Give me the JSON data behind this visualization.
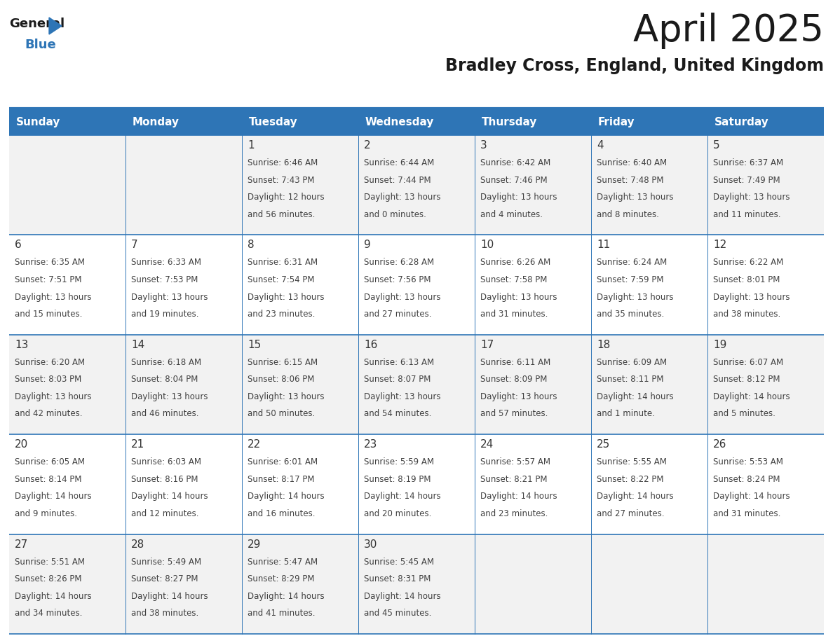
{
  "title": "April 2025",
  "subtitle": "Bradley Cross, England, United Kingdom",
  "header_color": "#2E75B6",
  "header_text_color": "#FFFFFF",
  "day_names": [
    "Sunday",
    "Monday",
    "Tuesday",
    "Wednesday",
    "Thursday",
    "Friday",
    "Saturday"
  ],
  "background_color": "#FFFFFF",
  "row_bg_odd": "#F2F2F2",
  "row_bg_even": "#FFFFFF",
  "cell_border_color": "#2E75B6",
  "text_color": "#404040",
  "date_color": "#333333",
  "logo_text_color": "#1a1a1a",
  "logo_blue_color": "#2E75B6",
  "title_color": "#1a1a1a",
  "subtitle_color": "#1a1a1a",
  "weeks": [
    [
      {
        "date": "",
        "sunrise": "",
        "sunset": "",
        "daylight_h": "",
        "daylight_m": ""
      },
      {
        "date": "",
        "sunrise": "",
        "sunset": "",
        "daylight_h": "",
        "daylight_m": ""
      },
      {
        "date": "1",
        "sunrise": "6:46 AM",
        "sunset": "7:43 PM",
        "daylight_h": "12 hours",
        "daylight_m": "56 minutes."
      },
      {
        "date": "2",
        "sunrise": "6:44 AM",
        "sunset": "7:44 PM",
        "daylight_h": "13 hours",
        "daylight_m": "0 minutes."
      },
      {
        "date": "3",
        "sunrise": "6:42 AM",
        "sunset": "7:46 PM",
        "daylight_h": "13 hours",
        "daylight_m": "4 minutes."
      },
      {
        "date": "4",
        "sunrise": "6:40 AM",
        "sunset": "7:48 PM",
        "daylight_h": "13 hours",
        "daylight_m": "8 minutes."
      },
      {
        "date": "5",
        "sunrise": "6:37 AM",
        "sunset": "7:49 PM",
        "daylight_h": "13 hours",
        "daylight_m": "11 minutes."
      }
    ],
    [
      {
        "date": "6",
        "sunrise": "6:35 AM",
        "sunset": "7:51 PM",
        "daylight_h": "13 hours",
        "daylight_m": "15 minutes."
      },
      {
        "date": "7",
        "sunrise": "6:33 AM",
        "sunset": "7:53 PM",
        "daylight_h": "13 hours",
        "daylight_m": "19 minutes."
      },
      {
        "date": "8",
        "sunrise": "6:31 AM",
        "sunset": "7:54 PM",
        "daylight_h": "13 hours",
        "daylight_m": "23 minutes."
      },
      {
        "date": "9",
        "sunrise": "6:28 AM",
        "sunset": "7:56 PM",
        "daylight_h": "13 hours",
        "daylight_m": "27 minutes."
      },
      {
        "date": "10",
        "sunrise": "6:26 AM",
        "sunset": "7:58 PM",
        "daylight_h": "13 hours",
        "daylight_m": "31 minutes."
      },
      {
        "date": "11",
        "sunrise": "6:24 AM",
        "sunset": "7:59 PM",
        "daylight_h": "13 hours",
        "daylight_m": "35 minutes."
      },
      {
        "date": "12",
        "sunrise": "6:22 AM",
        "sunset": "8:01 PM",
        "daylight_h": "13 hours",
        "daylight_m": "38 minutes."
      }
    ],
    [
      {
        "date": "13",
        "sunrise": "6:20 AM",
        "sunset": "8:03 PM",
        "daylight_h": "13 hours",
        "daylight_m": "42 minutes."
      },
      {
        "date": "14",
        "sunrise": "6:18 AM",
        "sunset": "8:04 PM",
        "daylight_h": "13 hours",
        "daylight_m": "46 minutes."
      },
      {
        "date": "15",
        "sunrise": "6:15 AM",
        "sunset": "8:06 PM",
        "daylight_h": "13 hours",
        "daylight_m": "50 minutes."
      },
      {
        "date": "16",
        "sunrise": "6:13 AM",
        "sunset": "8:07 PM",
        "daylight_h": "13 hours",
        "daylight_m": "54 minutes."
      },
      {
        "date": "17",
        "sunrise": "6:11 AM",
        "sunset": "8:09 PM",
        "daylight_h": "13 hours",
        "daylight_m": "57 minutes."
      },
      {
        "date": "18",
        "sunrise": "6:09 AM",
        "sunset": "8:11 PM",
        "daylight_h": "14 hours",
        "daylight_m": "1 minute."
      },
      {
        "date": "19",
        "sunrise": "6:07 AM",
        "sunset": "8:12 PM",
        "daylight_h": "14 hours",
        "daylight_m": "5 minutes."
      }
    ],
    [
      {
        "date": "20",
        "sunrise": "6:05 AM",
        "sunset": "8:14 PM",
        "daylight_h": "14 hours",
        "daylight_m": "9 minutes."
      },
      {
        "date": "21",
        "sunrise": "6:03 AM",
        "sunset": "8:16 PM",
        "daylight_h": "14 hours",
        "daylight_m": "12 minutes."
      },
      {
        "date": "22",
        "sunrise": "6:01 AM",
        "sunset": "8:17 PM",
        "daylight_h": "14 hours",
        "daylight_m": "16 minutes."
      },
      {
        "date": "23",
        "sunrise": "5:59 AM",
        "sunset": "8:19 PM",
        "daylight_h": "14 hours",
        "daylight_m": "20 minutes."
      },
      {
        "date": "24",
        "sunrise": "5:57 AM",
        "sunset": "8:21 PM",
        "daylight_h": "14 hours",
        "daylight_m": "23 minutes."
      },
      {
        "date": "25",
        "sunrise": "5:55 AM",
        "sunset": "8:22 PM",
        "daylight_h": "14 hours",
        "daylight_m": "27 minutes."
      },
      {
        "date": "26",
        "sunrise": "5:53 AM",
        "sunset": "8:24 PM",
        "daylight_h": "14 hours",
        "daylight_m": "31 minutes."
      }
    ],
    [
      {
        "date": "27",
        "sunrise": "5:51 AM",
        "sunset": "8:26 PM",
        "daylight_h": "14 hours",
        "daylight_m": "34 minutes."
      },
      {
        "date": "28",
        "sunrise": "5:49 AM",
        "sunset": "8:27 PM",
        "daylight_h": "14 hours",
        "daylight_m": "38 minutes."
      },
      {
        "date": "29",
        "sunrise": "5:47 AM",
        "sunset": "8:29 PM",
        "daylight_h": "14 hours",
        "daylight_m": "41 minutes."
      },
      {
        "date": "30",
        "sunrise": "5:45 AM",
        "sunset": "8:31 PM",
        "daylight_h": "14 hours",
        "daylight_m": "45 minutes."
      },
      {
        "date": "",
        "sunrise": "",
        "sunset": "",
        "daylight_h": "",
        "daylight_m": ""
      },
      {
        "date": "",
        "sunrise": "",
        "sunset": "",
        "daylight_h": "",
        "daylight_m": ""
      },
      {
        "date": "",
        "sunrise": "",
        "sunset": "",
        "daylight_h": "",
        "daylight_m": ""
      }
    ]
  ]
}
